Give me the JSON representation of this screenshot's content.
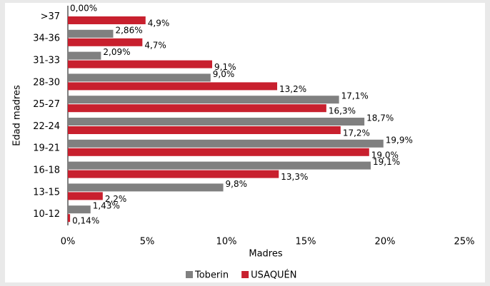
{
  "chart_data": {
    "type": "hbar",
    "categories": [
      ">37",
      "34-36",
      "31-33",
      "28-30",
      "25-27",
      "22-24",
      "19-21",
      "16-18",
      "13-15",
      "10-12"
    ],
    "series": [
      {
        "name": "Toberin",
        "color": "#808080",
        "values": [
          0.0,
          2.86,
          2.09,
          9.0,
          17.1,
          18.7,
          19.9,
          19.1,
          9.8,
          1.43
        ],
        "value_labels": [
          "0,00%",
          "2,86%",
          "2,09%",
          "9,0%",
          "17,1%",
          "18,7%",
          "19,9%",
          "19,1%",
          "9,8%",
          "1,43%"
        ]
      },
      {
        "name": "USAQUÉN",
        "color": "#c8202e",
        "values": [
          4.9,
          4.7,
          9.1,
          13.2,
          16.3,
          17.2,
          19.0,
          13.3,
          2.2,
          0.14
        ],
        "value_labels": [
          "4,9%",
          "4,7%",
          "9,1%",
          "13,2%",
          "16,3%",
          "17,2%",
          "19,0%",
          "13,3%",
          "2,2%",
          "0,14%"
        ]
      }
    ],
    "xlim": [
      0,
      25
    ],
    "xticks": [
      {
        "value": 0,
        "label": "0%"
      },
      {
        "value": 5,
        "label": "5%"
      },
      {
        "value": 10,
        "label": "10%"
      },
      {
        "value": 15,
        "label": "15%"
      },
      {
        "value": 20,
        "label": "20%"
      },
      {
        "value": 25,
        "label": "25%"
      }
    ],
    "xlabel": "Madres",
    "ylabel": "Edad madres",
    "legend": "bottom"
  }
}
